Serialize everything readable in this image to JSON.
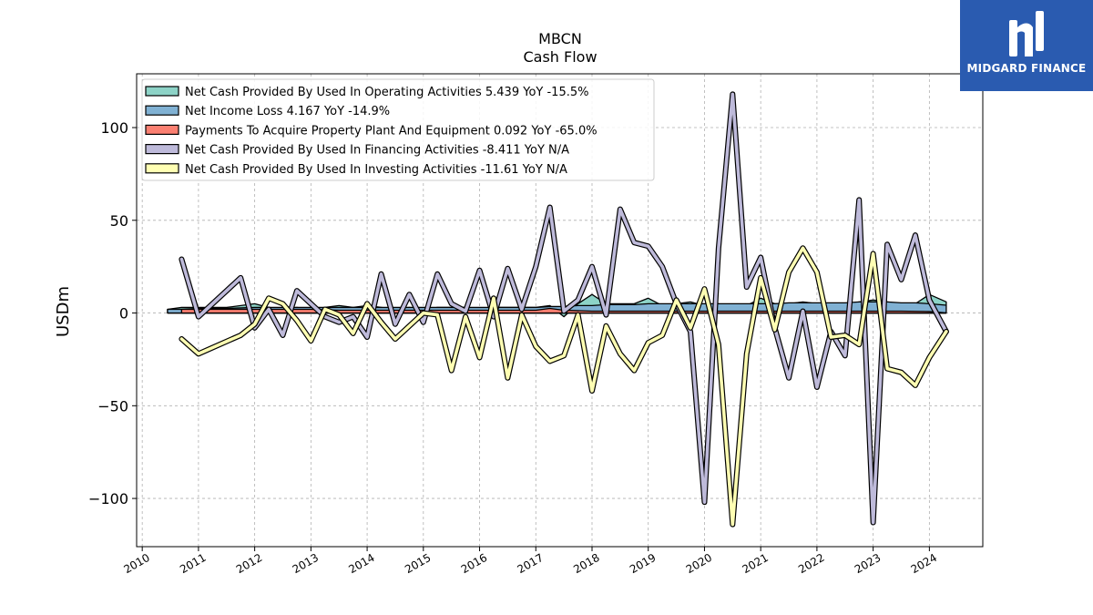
{
  "logo": {
    "text": "MIDGARD FINANCE",
    "mark": "midgard-logo-mark"
  },
  "chart_data": {
    "type": "area",
    "title": "MBCN",
    "subtitle": "Cash Flow",
    "ylabel": "USDm",
    "xlabel": "",
    "ylim": [
      -126,
      129
    ],
    "xlim": [
      2009.9,
      2024.95
    ],
    "yticks": [
      -100,
      -50,
      0,
      50,
      100
    ],
    "ytick_labels": [
      "−100",
      "−50",
      "0",
      "50",
      "100"
    ],
    "xticks": [
      2010,
      2011,
      2012,
      2013,
      2014,
      2015,
      2016,
      2017,
      2018,
      2019,
      2020,
      2021,
      2022,
      2023,
      2024
    ],
    "xtick_labels": [
      "2010",
      "2011",
      "2012",
      "2013",
      "2014",
      "2015",
      "2016",
      "2017",
      "2018",
      "2019",
      "2020",
      "2021",
      "2022",
      "2023",
      "2024"
    ],
    "grid": true,
    "legend_position": "top-left",
    "series": [
      {
        "name": "Net Cash Provided By Used In Operating Activities",
        "legend": "Net Cash Provided By Used In Operating Activities  5.439 YoY -15.5%",
        "style": "area",
        "color": "#8dd3c7",
        "x": [
          2010.45,
          2010.7,
          2011.0,
          2011.5,
          2012.0,
          2012.25,
          2012.5,
          2012.75,
          2013.0,
          2013.25,
          2013.5,
          2013.75,
          2014.0,
          2014.25,
          2014.5,
          2014.75,
          2015.0,
          2015.25,
          2015.5,
          2015.75,
          2016.0,
          2016.25,
          2016.5,
          2016.75,
          2017.0,
          2017.25,
          2017.5,
          2017.75,
          2018.0,
          2018.25,
          2018.5,
          2018.75,
          2019.0,
          2019.25,
          2019.5,
          2019.75,
          2020.0,
          2020.25,
          2020.5,
          2020.75,
          2021.0,
          2021.25,
          2021.5,
          2021.75,
          2022.0,
          2022.25,
          2022.5,
          2022.75,
          2023.0,
          2023.25,
          2023.5,
          2023.75,
          2024.0,
          2024.3
        ],
        "values": [
          2,
          3,
          3,
          3,
          5,
          3,
          2,
          3,
          2,
          3,
          4,
          3,
          4,
          3,
          2,
          3,
          2,
          3,
          3,
          3,
          2,
          3,
          3,
          3,
          3,
          4,
          -2,
          5,
          10,
          5,
          5,
          5,
          8,
          4,
          5,
          6,
          4,
          5,
          2,
          4,
          8,
          5,
          5,
          6,
          5,
          5,
          4,
          6,
          7,
          6,
          5,
          5,
          10,
          6
        ]
      },
      {
        "name": "Net Income Loss",
        "legend": "Net Income Loss  4.167 YoY -14.9%",
        "style": "area",
        "color": "#80b1d3",
        "x": [
          2010.45,
          2010.7,
          2011.0,
          2011.5,
          2012.0,
          2012.25,
          2012.5,
          2012.75,
          2013.0,
          2013.25,
          2013.5,
          2013.75,
          2014.0,
          2014.25,
          2014.5,
          2014.75,
          2015.0,
          2015.25,
          2015.5,
          2015.75,
          2016.0,
          2016.25,
          2016.5,
          2016.75,
          2017.0,
          2017.25,
          2017.5,
          2017.75,
          2018.0,
          2018.25,
          2018.5,
          2018.75,
          2019.0,
          2019.25,
          2019.5,
          2019.75,
          2020.0,
          2020.25,
          2020.5,
          2020.75,
          2021.0,
          2021.25,
          2021.5,
          2021.75,
          2022.0,
          2022.25,
          2022.5,
          2022.75,
          2023.0,
          2023.25,
          2023.5,
          2023.75,
          2024.0,
          2024.3
        ],
        "values": [
          2,
          2,
          2.5,
          2.5,
          3,
          3,
          3,
          3,
          3,
          3,
          3,
          3,
          3,
          3,
          3,
          3,
          3,
          3,
          3,
          3,
          3,
          3,
          3,
          3,
          3,
          3.5,
          3.5,
          4,
          4,
          4.5,
          4.5,
          4.5,
          5,
          5,
          5,
          5,
          5,
          5,
          5,
          5,
          5,
          5,
          5.5,
          5.5,
          5.5,
          5.5,
          5.5,
          6,
          6,
          6,
          5.5,
          5.5,
          5,
          4.2
        ]
      },
      {
        "name": "Payments To Acquire Property Plant And Equipment",
        "legend": "Payments To Acquire Property Plant And Equipment  0.092 YoY -65.0%",
        "style": "area",
        "color": "#fb8072",
        "x": [
          2010.7,
          2011.0,
          2011.5,
          2012.0,
          2012.5,
          2013.0,
          2013.5,
          2014.0,
          2014.5,
          2015.0,
          2015.5,
          2016.0,
          2016.5,
          2017.0,
          2017.25,
          2017.5,
          2018.0,
          2018.5,
          2019.0,
          2019.5,
          2020.0,
          2020.5,
          2021.0,
          2021.5,
          2022.0,
          2022.5,
          2023.0,
          2023.5,
          2024.0,
          2024.3
        ],
        "values": [
          2,
          2,
          2,
          2,
          2,
          2,
          1.5,
          1.5,
          1.5,
          1.5,
          1.5,
          1.5,
          1.5,
          1.5,
          2.5,
          1.5,
          1,
          1,
          1,
          1,
          1,
          1,
          1,
          1,
          1,
          1,
          1,
          1,
          0.8,
          0.1
        ]
      },
      {
        "name": "Net Cash Provided By Used In Financing Activities",
        "legend": "Net Cash Provided By Used In Financing Activities  -8.411 YoY N/A",
        "style": "line",
        "color": "#bebada",
        "x": [
          2010.7,
          2011.0,
          2011.75,
          2012.0,
          2012.25,
          2012.5,
          2012.75,
          2013.0,
          2013.25,
          2013.5,
          2013.75,
          2014.0,
          2014.25,
          2014.5,
          2014.75,
          2015.0,
          2015.25,
          2015.5,
          2015.75,
          2016.0,
          2016.25,
          2016.5,
          2016.75,
          2017.0,
          2017.25,
          2017.5,
          2017.75,
          2018.0,
          2018.25,
          2018.5,
          2018.75,
          2019.0,
          2019.25,
          2019.5,
          2019.75,
          2020.0,
          2020.25,
          2020.5,
          2020.75,
          2021.0,
          2021.25,
          2021.5,
          2021.75,
          2022.0,
          2022.25,
          2022.5,
          2022.75,
          2023.0,
          2023.25,
          2023.5,
          2023.75,
          2024.0,
          2024.3
        ],
        "values": [
          29,
          -2,
          19,
          -8,
          2,
          -12,
          12,
          5,
          -2,
          -5,
          -2,
          -13,
          21,
          -6,
          10,
          -5,
          21,
          5,
          1,
          23,
          -2,
          24,
          2,
          25,
          57,
          1,
          7,
          25,
          -1,
          56,
          38,
          36,
          25,
          5,
          -10,
          -102,
          35,
          118,
          14,
          30,
          -8,
          -35,
          1,
          -40,
          -10,
          -23,
          61,
          -113,
          37,
          18,
          42,
          7,
          -10
        ]
      },
      {
        "name": "Net Cash Provided By Used In Investing Activities",
        "legend": "Net Cash Provided By Used In Investing Activities  -11.61 YoY N/A",
        "style": "line",
        "color": "#ffffb3",
        "x": [
          2010.7,
          2011.0,
          2011.75,
          2012.0,
          2012.25,
          2012.5,
          2012.75,
          2013.0,
          2013.25,
          2013.5,
          2013.75,
          2014.0,
          2014.25,
          2014.5,
          2014.75,
          2015.0,
          2015.25,
          2015.5,
          2015.75,
          2016.0,
          2016.25,
          2016.5,
          2016.75,
          2017.0,
          2017.25,
          2017.5,
          2017.75,
          2018.0,
          2018.25,
          2018.5,
          2018.75,
          2019.0,
          2019.25,
          2019.5,
          2019.75,
          2020.0,
          2020.25,
          2020.5,
          2020.75,
          2021.0,
          2021.25,
          2021.5,
          2021.75,
          2022.0,
          2022.25,
          2022.5,
          2022.75,
          2023.0,
          2023.25,
          2023.5,
          2023.75,
          2024.0,
          2024.3
        ],
        "values": [
          -14,
          -22,
          -12,
          -6,
          8,
          5,
          -4,
          -15,
          2,
          -1,
          -11,
          5,
          -5,
          -14,
          -7,
          0,
          -1,
          -31,
          -2,
          -24,
          8,
          -35,
          -1,
          -18,
          -26,
          -23,
          -1,
          -42,
          -7,
          -22,
          -31,
          -16,
          -12,
          7,
          -8,
          13,
          -17,
          -114,
          -22,
          19,
          -9,
          22,
          35,
          22,
          -13,
          -12,
          -17,
          32,
          -30,
          -32,
          -39,
          -24,
          -10
        ]
      }
    ]
  }
}
